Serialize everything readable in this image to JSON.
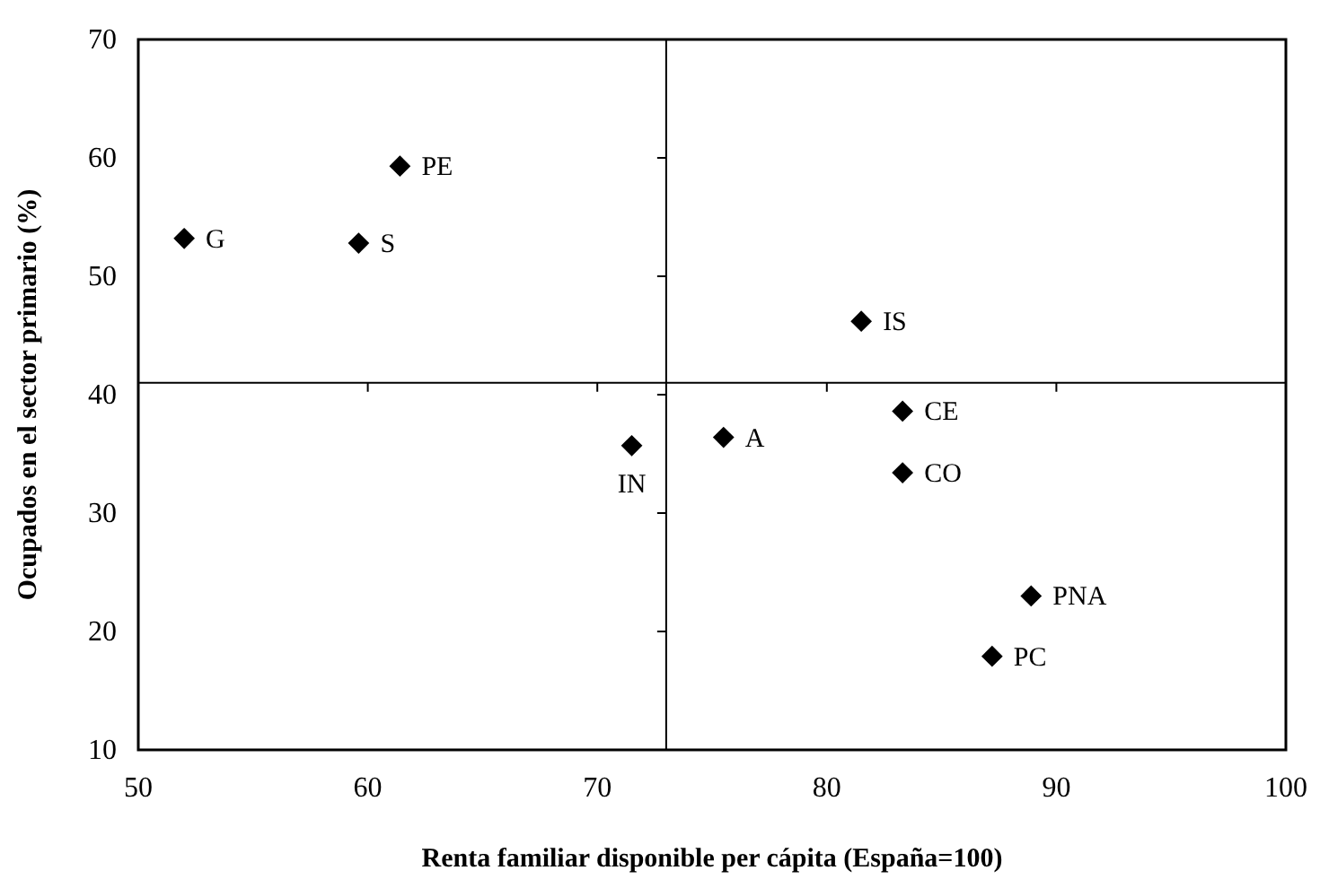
{
  "chart_data": {
    "type": "scatter",
    "xlabel": "Renta familiar disponible per cápita (España=100)",
    "ylabel": "Ocupados en el sector primario (%)",
    "x": [
      52.0,
      59.6,
      61.4,
      71.5,
      81.5,
      75.5,
      83.3,
      83.3,
      88.9,
      87.2
    ],
    "series": [
      {
        "color": "#000000",
        "values": [
          53.2,
          52.8,
          59.3,
          35.7,
          46.2,
          36.4,
          38.6,
          33.4,
          23.0,
          17.9
        ]
      }
    ],
    "marker": "diamond",
    "xlim": [
      50,
      100
    ],
    "xticks": [
      50,
      60,
      70,
      80,
      90,
      100
    ],
    "ylim": [
      10,
      70
    ],
    "yticks": [
      10,
      20,
      30,
      40,
      50,
      60,
      70
    ],
    "grid": false,
    "ref_lines": [
      {
        "axis": "x",
        "value": 73
      },
      {
        "axis": "y",
        "value": 41
      }
    ],
    "annotations": [
      {
        "text": "G",
        "x": 52.0,
        "y": 53.2
      },
      {
        "text": "S",
        "x": 59.6,
        "y": 52.8
      },
      {
        "text": "PE",
        "x": 61.4,
        "y": 59.3
      },
      {
        "text": "IN",
        "x": 71.5,
        "y": 35.7
      },
      {
        "text": "IS",
        "x": 81.5,
        "y": 46.2
      },
      {
        "text": "A",
        "x": 75.5,
        "y": 36.4
      },
      {
        "text": "CE",
        "x": 83.3,
        "y": 38.6
      },
      {
        "text": "CO",
        "x": 83.3,
        "y": 33.4
      },
      {
        "text": "PNA",
        "x": 88.9,
        "y": 23.0
      },
      {
        "text": "PC",
        "x": 87.2,
        "y": 17.9
      }
    ]
  }
}
